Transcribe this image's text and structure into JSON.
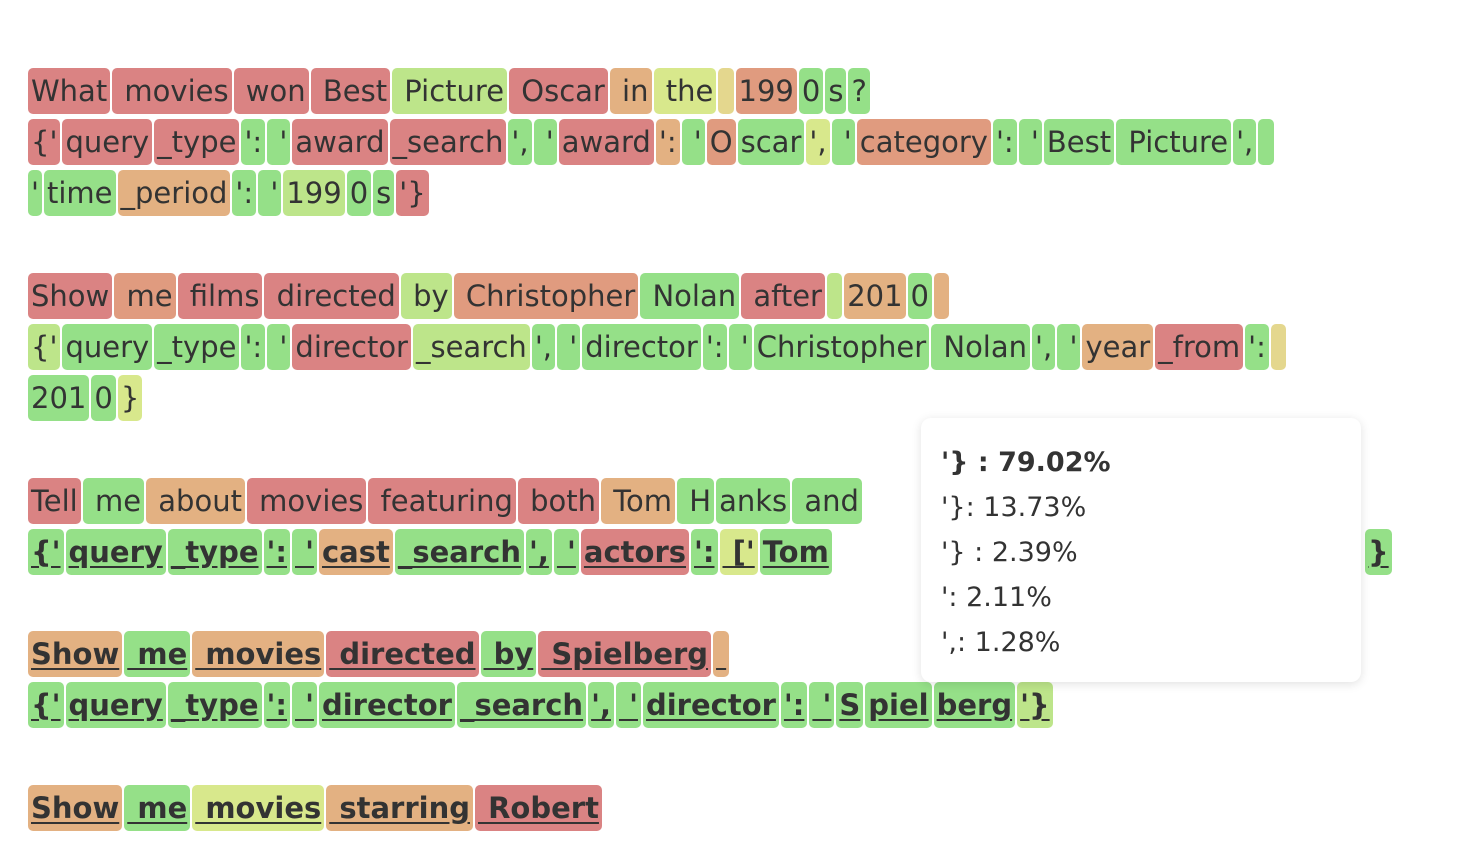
{
  "colors": {
    "c0": "#da8383",
    "c1": "#e09b7f",
    "c2": "#e3b182",
    "c3": "#e4d78e",
    "c4": "#d8e88c",
    "c5": "#bde58a",
    "c6": "#95e088",
    "tooltip_bg": "#ffffff",
    "text": "#333333"
  },
  "lines": [
    {
      "tokens": [
        {
          "t": "What",
          "c": 0
        },
        {
          "t": " movies",
          "c": 0
        },
        {
          "t": " won",
          "c": 0
        },
        {
          "t": " Best",
          "c": 0
        },
        {
          "t": " Picture",
          "c": 5
        },
        {
          "t": " Oscar",
          "c": 0
        },
        {
          "t": " in",
          "c": 2
        },
        {
          "t": " the",
          "c": 4
        },
        {
          "t": " ",
          "c": 3
        },
        {
          "t": "199",
          "c": 1
        },
        {
          "t": "0",
          "c": 6
        },
        {
          "t": "s",
          "c": 6
        },
        {
          "t": "?",
          "c": 6
        }
      ]
    },
    {
      "tokens": [
        {
          "t": "{'",
          "c": 0
        },
        {
          "t": "query",
          "c": 0
        },
        {
          "t": "_type",
          "c": 0
        },
        {
          "t": "':",
          "c": 6
        },
        {
          "t": " '",
          "c": 6
        },
        {
          "t": "award",
          "c": 0
        },
        {
          "t": "_search",
          "c": 0
        },
        {
          "t": "',",
          "c": 6
        },
        {
          "t": " '",
          "c": 6
        },
        {
          "t": "award",
          "c": 0
        },
        {
          "t": "':",
          "c": 2
        },
        {
          "t": " '",
          "c": 6
        },
        {
          "t": "O",
          "c": 1
        },
        {
          "t": "scar",
          "c": 6
        },
        {
          "t": "',",
          "c": 4
        },
        {
          "t": " '",
          "c": 6
        },
        {
          "t": "category",
          "c": 1
        },
        {
          "t": "':",
          "c": 6
        },
        {
          "t": " '",
          "c": 6
        },
        {
          "t": "Best",
          "c": 6
        },
        {
          "t": " Picture",
          "c": 6
        },
        {
          "t": "',",
          "c": 6
        },
        {
          "t": " ",
          "c": 6
        }
      ]
    },
    {
      "tokens": [
        {
          "t": "'",
          "c": 6
        },
        {
          "t": "time",
          "c": 6
        },
        {
          "t": "_period",
          "c": 2
        },
        {
          "t": "':",
          "c": 6
        },
        {
          "t": " '",
          "c": 6
        },
        {
          "t": "199",
          "c": 5
        },
        {
          "t": "0",
          "c": 6
        },
        {
          "t": "s",
          "c": 6
        },
        {
          "t": "'}",
          "c": 0
        }
      ]
    },
    {
      "tokens": [
        {
          "t": "Show",
          "c": 0
        },
        {
          "t": " me",
          "c": 1
        },
        {
          "t": " films",
          "c": 0
        },
        {
          "t": " directed",
          "c": 0
        },
        {
          "t": " by",
          "c": 5
        },
        {
          "t": " Christopher",
          "c": 1
        },
        {
          "t": " Nolan",
          "c": 6
        },
        {
          "t": " after",
          "c": 0
        },
        {
          "t": " ",
          "c": 5
        },
        {
          "t": "201",
          "c": 2
        },
        {
          "t": "0",
          "c": 6
        },
        {
          "t": " ",
          "c": 2
        }
      ]
    },
    {
      "tokens": [
        {
          "t": "{'",
          "c": 5
        },
        {
          "t": "query",
          "c": 6
        },
        {
          "t": "_type",
          "c": 6
        },
        {
          "t": "':",
          "c": 6
        },
        {
          "t": " '",
          "c": 6
        },
        {
          "t": "director",
          "c": 0
        },
        {
          "t": "_search",
          "c": 5
        },
        {
          "t": "',",
          "c": 6
        },
        {
          "t": " '",
          "c": 6
        },
        {
          "t": "director",
          "c": 6
        },
        {
          "t": "':",
          "c": 6
        },
        {
          "t": " '",
          "c": 6
        },
        {
          "t": "Christopher",
          "c": 6
        },
        {
          "t": " Nolan",
          "c": 6
        },
        {
          "t": "',",
          "c": 6
        },
        {
          "t": " '",
          "c": 6
        },
        {
          "t": "year",
          "c": 2
        },
        {
          "t": "_from",
          "c": 0
        },
        {
          "t": "':",
          "c": 6
        },
        {
          "t": " ",
          "c": 3
        }
      ]
    },
    {
      "tokens": [
        {
          "t": "201",
          "c": 6
        },
        {
          "t": "0",
          "c": 6
        },
        {
          "t": "}",
          "c": 4
        }
      ]
    },
    {
      "tokens": [
        {
          "t": "Tell",
          "c": 0
        },
        {
          "t": " me",
          "c": 6
        },
        {
          "t": " about",
          "c": 2
        },
        {
          "t": " movies",
          "c": 0
        },
        {
          "t": " featuring",
          "c": 0
        },
        {
          "t": " both",
          "c": 0
        },
        {
          "t": " Tom",
          "c": 2
        },
        {
          "t": " H",
          "c": 6
        },
        {
          "t": "anks",
          "c": 6
        },
        {
          "t": " and",
          "c": 6
        }
      ]
    },
    {
      "underline": true,
      "tokens": [
        {
          "t": "{'",
          "c": 6
        },
        {
          "t": "query",
          "c": 6
        },
        {
          "t": "_type",
          "c": 6
        },
        {
          "t": "':",
          "c": 6
        },
        {
          "t": " '",
          "c": 6
        },
        {
          "t": "cast",
          "c": 2
        },
        {
          "t": "_search",
          "c": 6
        },
        {
          "t": "',",
          "c": 6
        },
        {
          "t": " '",
          "c": 6
        },
        {
          "t": "actors",
          "c": 0
        },
        {
          "t": "':",
          "c": 6
        },
        {
          "t": " ['",
          "c": 4
        },
        {
          "t": "Tom",
          "c": 6
        }
      ]
    },
    {
      "underline": true,
      "tokens": [
        {
          "t": "Show",
          "c": 2
        },
        {
          "t": " me",
          "c": 6
        },
        {
          "t": " movies",
          "c": 2
        },
        {
          "t": " directed",
          "c": 0
        },
        {
          "t": " by",
          "c": 6
        },
        {
          "t": " Spielberg",
          "c": 0
        },
        {
          "t": " ",
          "c": 2
        }
      ]
    },
    {
      "underline": true,
      "tokens": [
        {
          "t": "{'",
          "c": 6
        },
        {
          "t": "query",
          "c": 6
        },
        {
          "t": "_type",
          "c": 6
        },
        {
          "t": "':",
          "c": 6
        },
        {
          "t": " '",
          "c": 6
        },
        {
          "t": "director",
          "c": 6
        },
        {
          "t": "_search",
          "c": 6
        },
        {
          "t": "',",
          "c": 6
        },
        {
          "t": " '",
          "c": 6
        },
        {
          "t": "director",
          "c": 6
        },
        {
          "t": "':",
          "c": 6
        },
        {
          "t": " '",
          "c": 6
        },
        {
          "t": "S",
          "c": 6
        },
        {
          "t": "piel",
          "c": 6
        },
        {
          "t": "berg",
          "c": 6
        },
        {
          "t": "'}",
          "c": 5
        }
      ]
    },
    {
      "underline": true,
      "tokens": [
        {
          "t": "Show",
          "c": 2
        },
        {
          "t": " me",
          "c": 6
        },
        {
          "t": " movies",
          "c": 4
        },
        {
          "t": " starring",
          "c": 2
        },
        {
          "t": " Robert",
          "c": 0
        }
      ]
    }
  ],
  "tail_token": {
    "t": "}",
    "c": 6
  },
  "tooltip": {
    "rows": [
      "'} : 79.02%",
      "'}: 13.73%",
      "'} : 2.39%",
      "': 2.11%",
      "',: 1.28%"
    ]
  }
}
